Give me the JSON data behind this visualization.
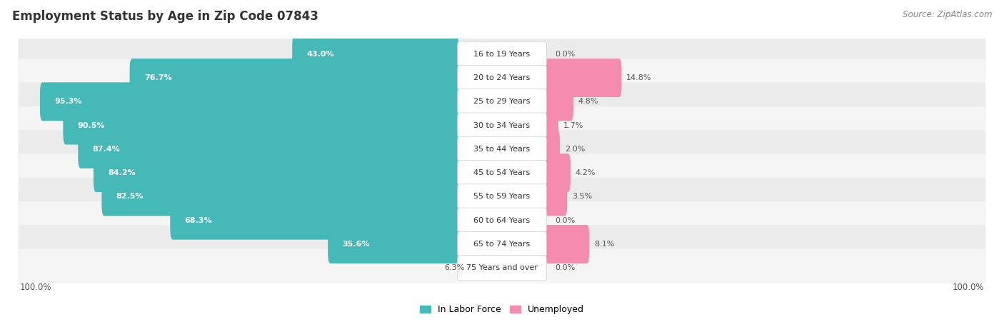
{
  "title": "Employment Status by Age in Zip Code 07843",
  "source": "Source: ZipAtlas.com",
  "categories": [
    "16 to 19 Years",
    "20 to 24 Years",
    "25 to 29 Years",
    "30 to 34 Years",
    "35 to 44 Years",
    "45 to 54 Years",
    "55 to 59 Years",
    "60 to 64 Years",
    "65 to 74 Years",
    "75 Years and over"
  ],
  "in_labor_force": [
    43.0,
    76.7,
    95.3,
    90.5,
    87.4,
    84.2,
    82.5,
    68.3,
    35.6,
    6.3
  ],
  "unemployed": [
    0.0,
    14.8,
    4.8,
    1.7,
    2.0,
    4.2,
    3.5,
    0.0,
    8.1,
    0.0
  ],
  "labor_color": "#45b8b8",
  "unemployed_color": "#f48cb0",
  "row_bg_odd": "#ebebeb",
  "row_bg_even": "#f5f5f5",
  "center_label_bg": "#ffffff",
  "center_label_color": "#333333",
  "label_color_outside": "#555555",
  "label_color_inside": "#ffffff",
  "fig_width": 14.06,
  "fig_height": 4.51
}
